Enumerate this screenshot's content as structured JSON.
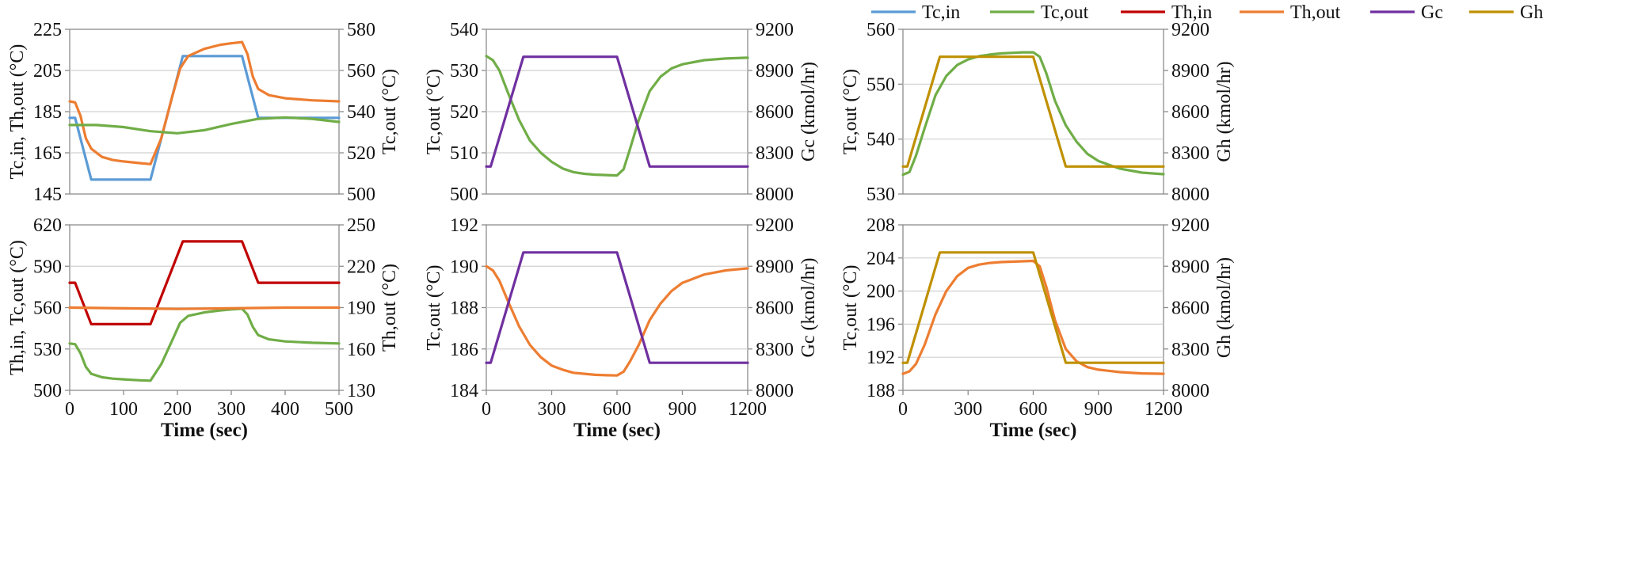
{
  "colors": {
    "Tc,in": "#5b9bd5",
    "Tc,out": "#70ad47",
    "Th,in": "#c00000",
    "Th,out": "#ed7d31",
    "Gc": "#7030a0",
    "Gh": "#bf9000"
  },
  "legend": [
    "Tc,in",
    "Tc,out",
    "Th,in",
    "Th,out",
    "Gc",
    "Gh"
  ],
  "chart_data": [
    {
      "id": "p1",
      "type": "line",
      "xlabel": "",
      "xlim": [
        0,
        500
      ],
      "xticks": [],
      "ylabel": "Tc,in,  Th,out  (°C)",
      "ylim": [
        145,
        225
      ],
      "yticks": [
        145,
        165,
        185,
        205,
        225
      ],
      "y2label": "Tc,out  (°C)",
      "y2lim": [
        500,
        580
      ],
      "y2ticks": [
        500,
        520,
        540,
        560,
        580
      ],
      "series": [
        {
          "name": "Tc,in",
          "axis": "y",
          "x": [
            0,
            10,
            40,
            150,
            210,
            320,
            350,
            500
          ],
          "y": [
            182,
            182,
            152,
            152,
            212,
            212,
            182,
            182
          ]
        },
        {
          "name": "Th,out",
          "axis": "y",
          "x": [
            0,
            10,
            20,
            30,
            40,
            60,
            80,
            100,
            130,
            150,
            170,
            190,
            205,
            220,
            250,
            280,
            300,
            320,
            330,
            340,
            350,
            370,
            400,
            450,
            500
          ],
          "y": [
            190,
            189.5,
            183,
            172,
            167,
            163,
            161.5,
            160.8,
            160,
            159.5,
            172,
            192,
            206,
            212,
            215.5,
            217.5,
            218.2,
            218.8,
            213,
            202,
            196,
            193,
            191.5,
            190.5,
            190
          ]
        },
        {
          "name": "Tc,out",
          "axis": "y2",
          "x": [
            0,
            50,
            100,
            150,
            200,
            250,
            300,
            350,
            400,
            450,
            500
          ],
          "y": [
            533.5,
            533.5,
            532.5,
            530.5,
            529.5,
            531,
            534,
            536.5,
            537.2,
            536.5,
            535
          ]
        }
      ]
    },
    {
      "id": "p2",
      "type": "line",
      "xlabel": "",
      "xlim": [
        0,
        1200
      ],
      "xticks": [],
      "ylabel": "Tc,out  (°C)",
      "ylim": [
        500,
        540
      ],
      "yticks": [
        500,
        510,
        520,
        530,
        540
      ],
      "y2label": "Gc  (kmol/hr)",
      "y2lim": [
        8000,
        9200
      ],
      "y2ticks": [
        8000,
        8300,
        8600,
        8900,
        9200
      ],
      "series": [
        {
          "name": "Tc,out",
          "axis": "y",
          "x": [
            0,
            30,
            60,
            100,
            150,
            200,
            250,
            300,
            350,
            400,
            450,
            500,
            550,
            600,
            630,
            660,
            700,
            750,
            800,
            850,
            900,
            1000,
            1100,
            1200
          ],
          "y": [
            533.5,
            532.5,
            530,
            524.5,
            518,
            513,
            510,
            507.8,
            506.2,
            505.3,
            504.9,
            504.7,
            504.6,
            504.5,
            506,
            511,
            518,
            525,
            528.5,
            530.5,
            531.5,
            532.5,
            532.9,
            533.1
          ]
        },
        {
          "name": "Gc",
          "axis": "y2",
          "x": [
            0,
            20,
            170,
            600,
            750,
            1200
          ],
          "y": [
            8200,
            8200,
            9000,
            9000,
            8200,
            8200
          ]
        }
      ]
    },
    {
      "id": "p3",
      "type": "line",
      "xlabel": "",
      "xlim": [
        0,
        1200
      ],
      "xticks": [],
      "ylabel": "Tc,out  (°C)",
      "ylim": [
        530,
        560
      ],
      "yticks": [
        530,
        540,
        550,
        560
      ],
      "y2label": "Gh  (kmol/hr)",
      "y2lim": [
        8000,
        9200
      ],
      "y2ticks": [
        8000,
        8300,
        8600,
        8900,
        9200
      ],
      "series": [
        {
          "name": "Tc,out",
          "axis": "y",
          "x": [
            0,
            30,
            60,
            100,
            150,
            200,
            250,
            300,
            350,
            400,
            450,
            500,
            550,
            600,
            630,
            660,
            700,
            750,
            800,
            850,
            900,
            1000,
            1100,
            1200
          ],
          "y": [
            533.5,
            534,
            537,
            542,
            548,
            551.5,
            553.5,
            554.5,
            555.1,
            555.4,
            555.6,
            555.7,
            555.8,
            555.8,
            555,
            552,
            547,
            542.5,
            539.5,
            537.3,
            536,
            534.6,
            533.9,
            533.6
          ]
        },
        {
          "name": "Gh",
          "axis": "y2",
          "x": [
            0,
            20,
            170,
            600,
            750,
            1200
          ],
          "y": [
            8200,
            8200,
            9000,
            9000,
            8200,
            8200
          ]
        }
      ]
    },
    {
      "id": "p4",
      "type": "line",
      "xlabel": "Time  (sec)",
      "xlim": [
        0,
        500
      ],
      "xticks": [
        0,
        100,
        200,
        300,
        400,
        500
      ],
      "ylabel": "Th,in,  Tc,out  (°C)",
      "ylim": [
        500,
        620
      ],
      "yticks": [
        500,
        530,
        560,
        590,
        620
      ],
      "y2label": "Th,out  (°C)",
      "y2lim": [
        130,
        250
      ],
      "y2ticks": [
        130,
        160,
        190,
        220,
        250
      ],
      "series": [
        {
          "name": "Th,in",
          "axis": "y",
          "x": [
            0,
            10,
            40,
            150,
            210,
            320,
            350,
            500
          ],
          "y": [
            578,
            578,
            548,
            548,
            608,
            608,
            578,
            578
          ]
        },
        {
          "name": "Tc,out",
          "axis": "y",
          "x": [
            0,
            10,
            20,
            30,
            40,
            60,
            80,
            100,
            130,
            150,
            170,
            190,
            205,
            220,
            250,
            280,
            300,
            320,
            330,
            340,
            350,
            370,
            400,
            450,
            500
          ],
          "y": [
            534,
            533.5,
            527,
            517,
            512,
            509.5,
            508.5,
            508,
            507.3,
            507,
            519,
            536,
            549,
            554,
            556.5,
            558,
            558.7,
            559.2,
            555,
            546,
            540,
            537,
            535.5,
            534.5,
            534
          ]
        },
        {
          "name": "Th,out",
          "axis": "y2",
          "x": [
            0,
            100,
            200,
            300,
            400,
            500
          ],
          "y": [
            190,
            189.5,
            189,
            189.5,
            190,
            190
          ]
        }
      ]
    },
    {
      "id": "p5",
      "type": "line",
      "xlabel": "Time  (sec)",
      "xlim": [
        0,
        1200
      ],
      "xticks": [
        0,
        300,
        600,
        900,
        1200
      ],
      "ylabel": "Tc,out  (°C)",
      "ylim": [
        184,
        192
      ],
      "yticks": [
        184,
        186,
        188,
        190,
        192
      ],
      "y2label": "Gc  (kmol/hr)",
      "y2lim": [
        8000,
        9200
      ],
      "y2ticks": [
        8000,
        8300,
        8600,
        8900,
        9200
      ],
      "series": [
        {
          "name": "Th,out",
          "axis": "y",
          "x": [
            0,
            30,
            60,
            100,
            150,
            200,
            250,
            300,
            350,
            400,
            450,
            500,
            550,
            600,
            630,
            660,
            700,
            750,
            800,
            850,
            900,
            1000,
            1100,
            1200
          ],
          "y": [
            190,
            189.8,
            189.3,
            188.3,
            187.1,
            186.2,
            185.6,
            185.2,
            185,
            184.85,
            184.8,
            184.75,
            184.73,
            184.72,
            184.9,
            185.4,
            186.2,
            187.4,
            188.2,
            188.8,
            189.2,
            189.6,
            189.8,
            189.9
          ]
        },
        {
          "name": "Gc",
          "axis": "y2",
          "x": [
            0,
            20,
            170,
            600,
            750,
            1200
          ],
          "y": [
            8200,
            8200,
            9000,
            9000,
            8200,
            8200
          ]
        }
      ]
    },
    {
      "id": "p6",
      "type": "line",
      "xlabel": "Time  (sec)",
      "xlim": [
        0,
        1200
      ],
      "xticks": [
        0,
        300,
        600,
        900,
        1200
      ],
      "ylabel": "Tc,out  (°C)",
      "ylim": [
        188,
        208
      ],
      "yticks": [
        188,
        192,
        196,
        200,
        204,
        208
      ],
      "y2label": "Gh  (kmol/hr)",
      "y2lim": [
        8000,
        9200
      ],
      "y2ticks": [
        8000,
        8300,
        8600,
        8900,
        9200
      ],
      "series": [
        {
          "name": "Th,out",
          "axis": "y",
          "x": [
            0,
            30,
            60,
            100,
            150,
            200,
            250,
            300,
            350,
            400,
            450,
            500,
            550,
            600,
            630,
            660,
            700,
            750,
            800,
            850,
            900,
            1000,
            1100,
            1200
          ],
          "y": [
            190,
            190.3,
            191.2,
            193.5,
            197.2,
            200,
            201.8,
            202.8,
            203.2,
            203.4,
            203.5,
            203.55,
            203.6,
            203.65,
            203,
            200.5,
            196.5,
            193,
            191.5,
            190.8,
            190.5,
            190.2,
            190.05,
            190
          ]
        },
        {
          "name": "Gh",
          "axis": "y2",
          "x": [
            0,
            20,
            170,
            600,
            750,
            1200
          ],
          "y": [
            8200,
            8200,
            9000,
            9000,
            8200,
            8200
          ]
        }
      ]
    }
  ]
}
